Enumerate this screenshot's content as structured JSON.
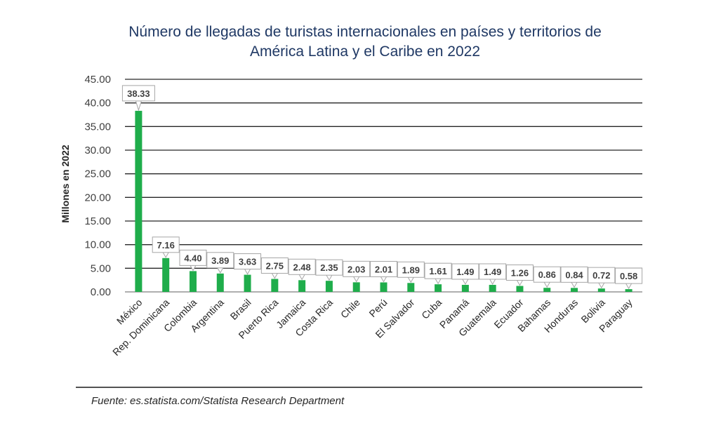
{
  "chart_data": {
    "type": "bar",
    "title_lines": [
      "Número de llegadas de turistas internacionales en países y territorios de",
      "América Latina y el Caribe en 2022"
    ],
    "ylabel": "Millones en 2022",
    "xlabel": "",
    "ylim": [
      0,
      45
    ],
    "yticks": [
      "0.00",
      "5.00",
      "10.00",
      "15.00",
      "20.00",
      "25.00",
      "30.00",
      "35.00",
      "40.00",
      "45.00"
    ],
    "grid": true,
    "categories": [
      "México",
      "Rep. Dominicana",
      "Colombia",
      "Argentina",
      "Brasil",
      "Puerto Rica",
      "Jamaica",
      "Costa Rica",
      "Chile",
      "Perú",
      "El Salvador",
      "Cuba",
      "Panamá",
      "Guatemala",
      "Ecuador",
      "Bahamas",
      "Honduras",
      "Bolivia",
      "Paraguay"
    ],
    "values": [
      38.33,
      7.16,
      4.4,
      3.89,
      3.63,
      2.75,
      2.48,
      2.35,
      2.03,
      2.01,
      1.89,
      1.61,
      1.49,
      1.49,
      1.26,
      0.86,
      0.84,
      0.72,
      0.58
    ],
    "data_labels": [
      "38.33",
      "7.16",
      "4.40",
      "3.89",
      "3.63",
      "2.75",
      "2.48",
      "2.35",
      "2.03",
      "2.01",
      "1.89",
      "1.61",
      "1.49",
      "1.49",
      "1.26",
      "0.86",
      "0.84",
      "0.72",
      "0.58"
    ],
    "bar_color": "#1fad4b",
    "source": "Fuente: es.statista.com/Statista Research Department"
  }
}
